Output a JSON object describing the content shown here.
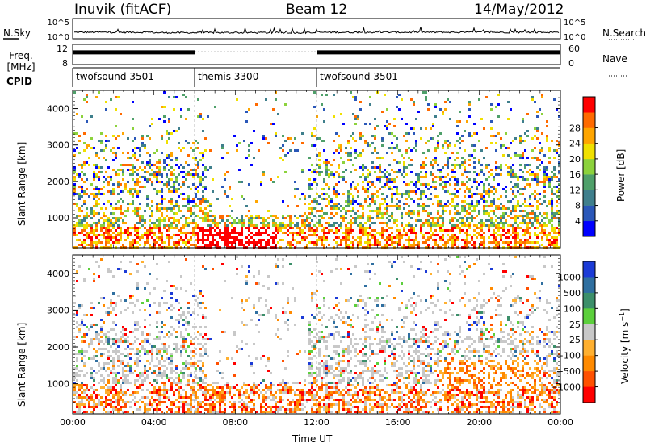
{
  "header": {
    "radar": "Inuvik (fitACF)",
    "beam": "Beam 12",
    "date": "14/May/2012"
  },
  "colors": {
    "power_scale": [
      "#0000ff",
      "#2a57b8",
      "#3f7f8c",
      "#4fa06a",
      "#8cd23c",
      "#f0e000",
      "#ffa500",
      "#ff6a00",
      "#ff0000"
    ],
    "velocity_scale": [
      "#1c3bd6",
      "#2f6fa0",
      "#3c8f6a",
      "#5ccf3c",
      "#c8c8c8",
      "#ffb030",
      "#ff8a00",
      "#ff5000",
      "#ff0000"
    ]
  },
  "chart_data": [
    {
      "type": "line",
      "name": "noise-panel",
      "left_label": "N.Sky",
      "right_label": "N.Search",
      "left_ticks": [
        "10^5",
        "10^0"
      ],
      "right_ticks": [
        "10^5",
        "10^0"
      ],
      "ylim": [
        0,
        5
      ],
      "y_scale": "log",
      "x": [
        "00:00",
        "04:00",
        "08:00",
        "12:00",
        "16:00",
        "20:00",
        "00:00"
      ],
      "series": [
        {
          "values": [
            1.6,
            1.5,
            1.5,
            1.6,
            1.6,
            1.6,
            1.5
          ]
        }
      ]
    },
    {
      "type": "line",
      "name": "frequency-panel",
      "left_label": "Freq. [MHz]",
      "right_label": "Nave",
      "left_ticks": [
        "12",
        "8"
      ],
      "right_ticks": [
        "60",
        "0"
      ],
      "ylim": [
        8,
        12
      ],
      "x": [
        "00:00",
        "06:00",
        "12:00",
        "24:00"
      ],
      "series": [
        {
          "values": [
            10.5,
            10.5,
            10.5,
            10.5
          ]
        }
      ]
    },
    {
      "type": "table",
      "name": "cpid-panel",
      "label": "CPID",
      "segments": [
        {
          "start": "00:00",
          "end": "06:00",
          "text": "twofsound 3501"
        },
        {
          "start": "06:00",
          "end": "12:00",
          "text": "themis 3300"
        },
        {
          "start": "12:00",
          "end": "24:00",
          "text": "twofsound 3501"
        }
      ]
    },
    {
      "type": "heatmap",
      "name": "power-panel",
      "ylabel": "Slant Range [km]",
      "yticks": [
        1000,
        2000,
        3000,
        4000
      ],
      "ylim": [
        180,
        4500
      ],
      "colorbar_label": "Power [dB]",
      "colorbar_ticks": [
        4,
        8,
        12,
        16,
        20,
        24,
        28
      ]
    },
    {
      "type": "heatmap",
      "name": "velocity-panel",
      "ylabel": "Slant Range [km]",
      "yticks": [
        1000,
        2000,
        3000,
        4000
      ],
      "ylim": [
        180,
        4500
      ],
      "xlabel": "Time UT",
      "xticks": [
        "00:00",
        "04:00",
        "08:00",
        "12:00",
        "16:00",
        "20:00",
        "00:00"
      ],
      "colorbar_label": "Velocity [m s^-1]",
      "colorbar_ticks": [
        "1000",
        "500",
        "100",
        "25",
        "−25",
        "−100",
        "−500",
        "−1000"
      ]
    }
  ]
}
